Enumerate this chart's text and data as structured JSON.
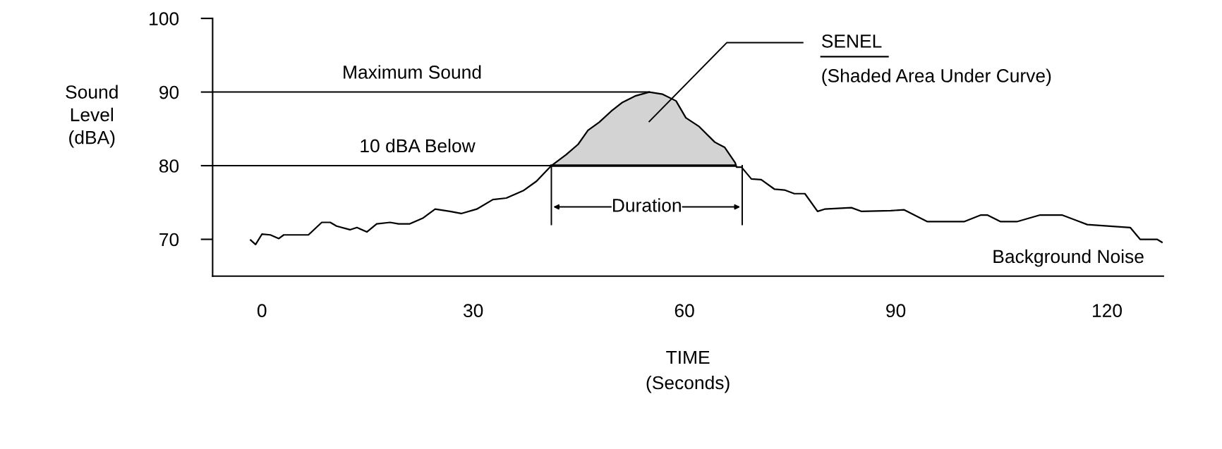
{
  "chart_data": {
    "type": "line",
    "xlabel": "TIME\n(Seconds)",
    "ylabel": "Sound\nLevel\n(dBA)",
    "xlim": [
      -7,
      128
    ],
    "ylim": [
      65,
      100
    ],
    "xticks": [
      0,
      30,
      60,
      90,
      120
    ],
    "yticks": [
      70,
      80,
      90,
      100
    ],
    "grid": false,
    "marker": "none",
    "line_style": "solid",
    "series": [
      {
        "color": "#000000",
        "x": [
          -1.6,
          -0.9,
          0.0,
          1.2,
          2.4,
          3.1,
          6.6,
          8.5,
          9.7,
          10.6,
          12.5,
          13.5,
          14.9,
          16.3,
          18.2,
          19.4,
          21.0,
          22.9,
          24.6,
          26.7,
          28.3,
          30.5,
          32.8,
          34.7,
          37.1,
          39.0,
          41.1,
          43.2,
          44.9,
          46.3,
          47.9,
          49.6,
          51.2,
          53.1,
          55.0,
          56.9,
          58.8,
          60.2,
          62.1,
          64.3,
          65.7,
          67.2,
          67.4,
          68.1,
          69.5,
          70.9,
          72.8,
          74.2,
          75.6,
          77.1,
          78.9,
          79.9,
          83.7,
          85.1,
          89.3,
          91.2,
          94.5,
          99.7,
          102.1,
          103.0,
          104.9,
          107.2,
          110.5,
          113.6,
          117.2,
          123.3,
          124.7,
          127.1,
          127.8
        ],
        "values": [
          69.9,
          69.3,
          70.7,
          70.6,
          70.1,
          70.6,
          70.6,
          72.3,
          72.3,
          71.8,
          71.3,
          71.6,
          71.0,
          72.1,
          72.3,
          72.1,
          72.1,
          72.9,
          74.1,
          73.8,
          73.5,
          74.1,
          75.4,
          75.6,
          76.6,
          77.9,
          80.0,
          81.5,
          82.9,
          84.8,
          85.9,
          87.4,
          88.6,
          89.5,
          90.0,
          89.7,
          88.8,
          86.5,
          85.3,
          83.2,
          82.5,
          80.4,
          79.8,
          79.8,
          78.2,
          78.1,
          76.8,
          76.7,
          76.2,
          76.2,
          73.8,
          74.1,
          74.3,
          73.8,
          73.9,
          74.0,
          72.4,
          72.4,
          73.3,
          73.3,
          72.4,
          72.4,
          73.3,
          73.3,
          72.0,
          71.6,
          70.0,
          70.0,
          69.6
        ]
      },
      {
        "type": "area",
        "color": "#d3d3d3",
        "x": [
          41.1,
          43.2,
          44.9,
          46.3,
          47.9,
          49.6,
          51.2,
          53.1,
          55.0,
          56.9,
          58.8,
          60.2,
          62.1,
          64.3,
          65.7,
          67.2
        ],
        "values": [
          80.0,
          81.5,
          82.9,
          84.8,
          85.9,
          87.4,
          88.6,
          89.5,
          90.0,
          89.7,
          88.8,
          86.5,
          85.3,
          83.2,
          82.5,
          80.4
        ]
      }
    ],
    "ref_lines": [
      {
        "axis": "y",
        "value": 90,
        "label": "Maximum Sound",
        "color": "#000000",
        "line_style": "solid"
      },
      {
        "axis": "y",
        "value": 80,
        "label": "10 dBA Below",
        "color": "#000000",
        "line_style": "solid"
      }
    ],
    "annotations": [
      "Duration",
      "SENEL",
      "(Shaded Area Under Curve)",
      "Background Noise"
    ]
  }
}
